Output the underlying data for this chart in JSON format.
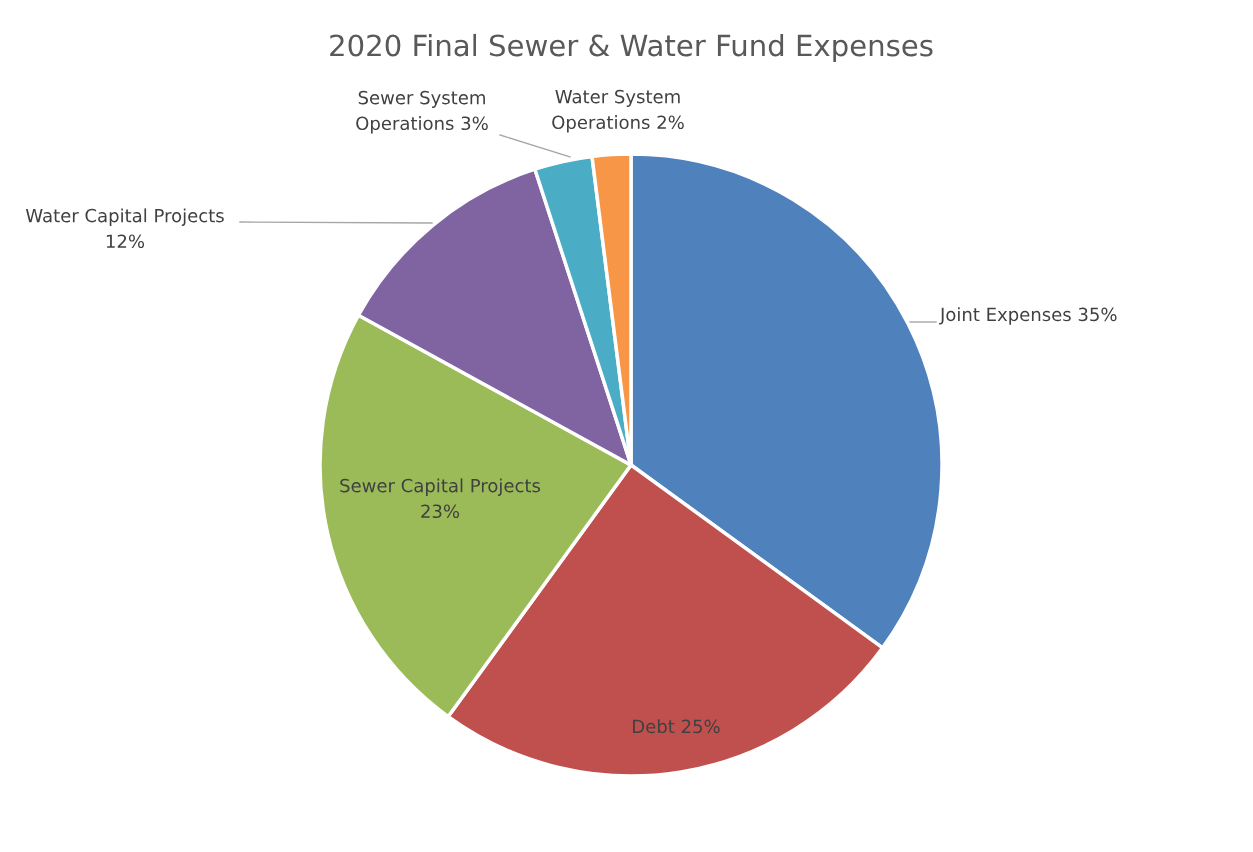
{
  "chart_data": {
    "type": "pie",
    "title": "2020 Final Sewer & Water Fund Expenses",
    "categories": [
      "Joint Expenses",
      "Debt",
      "Sewer Capital Projects",
      "Water Capital Projects",
      "Sewer System Operations",
      "Water System Operations"
    ],
    "values": [
      35,
      25,
      23,
      12,
      3,
      2
    ],
    "value_labels": [
      "35%",
      "25%",
      "23%",
      "12%",
      "3%",
      "2%"
    ],
    "colors": [
      "#4f81bd",
      "#c0504d",
      "#9bbb59",
      "#8064a2",
      "#4bacc6",
      "#f79646"
    ]
  }
}
